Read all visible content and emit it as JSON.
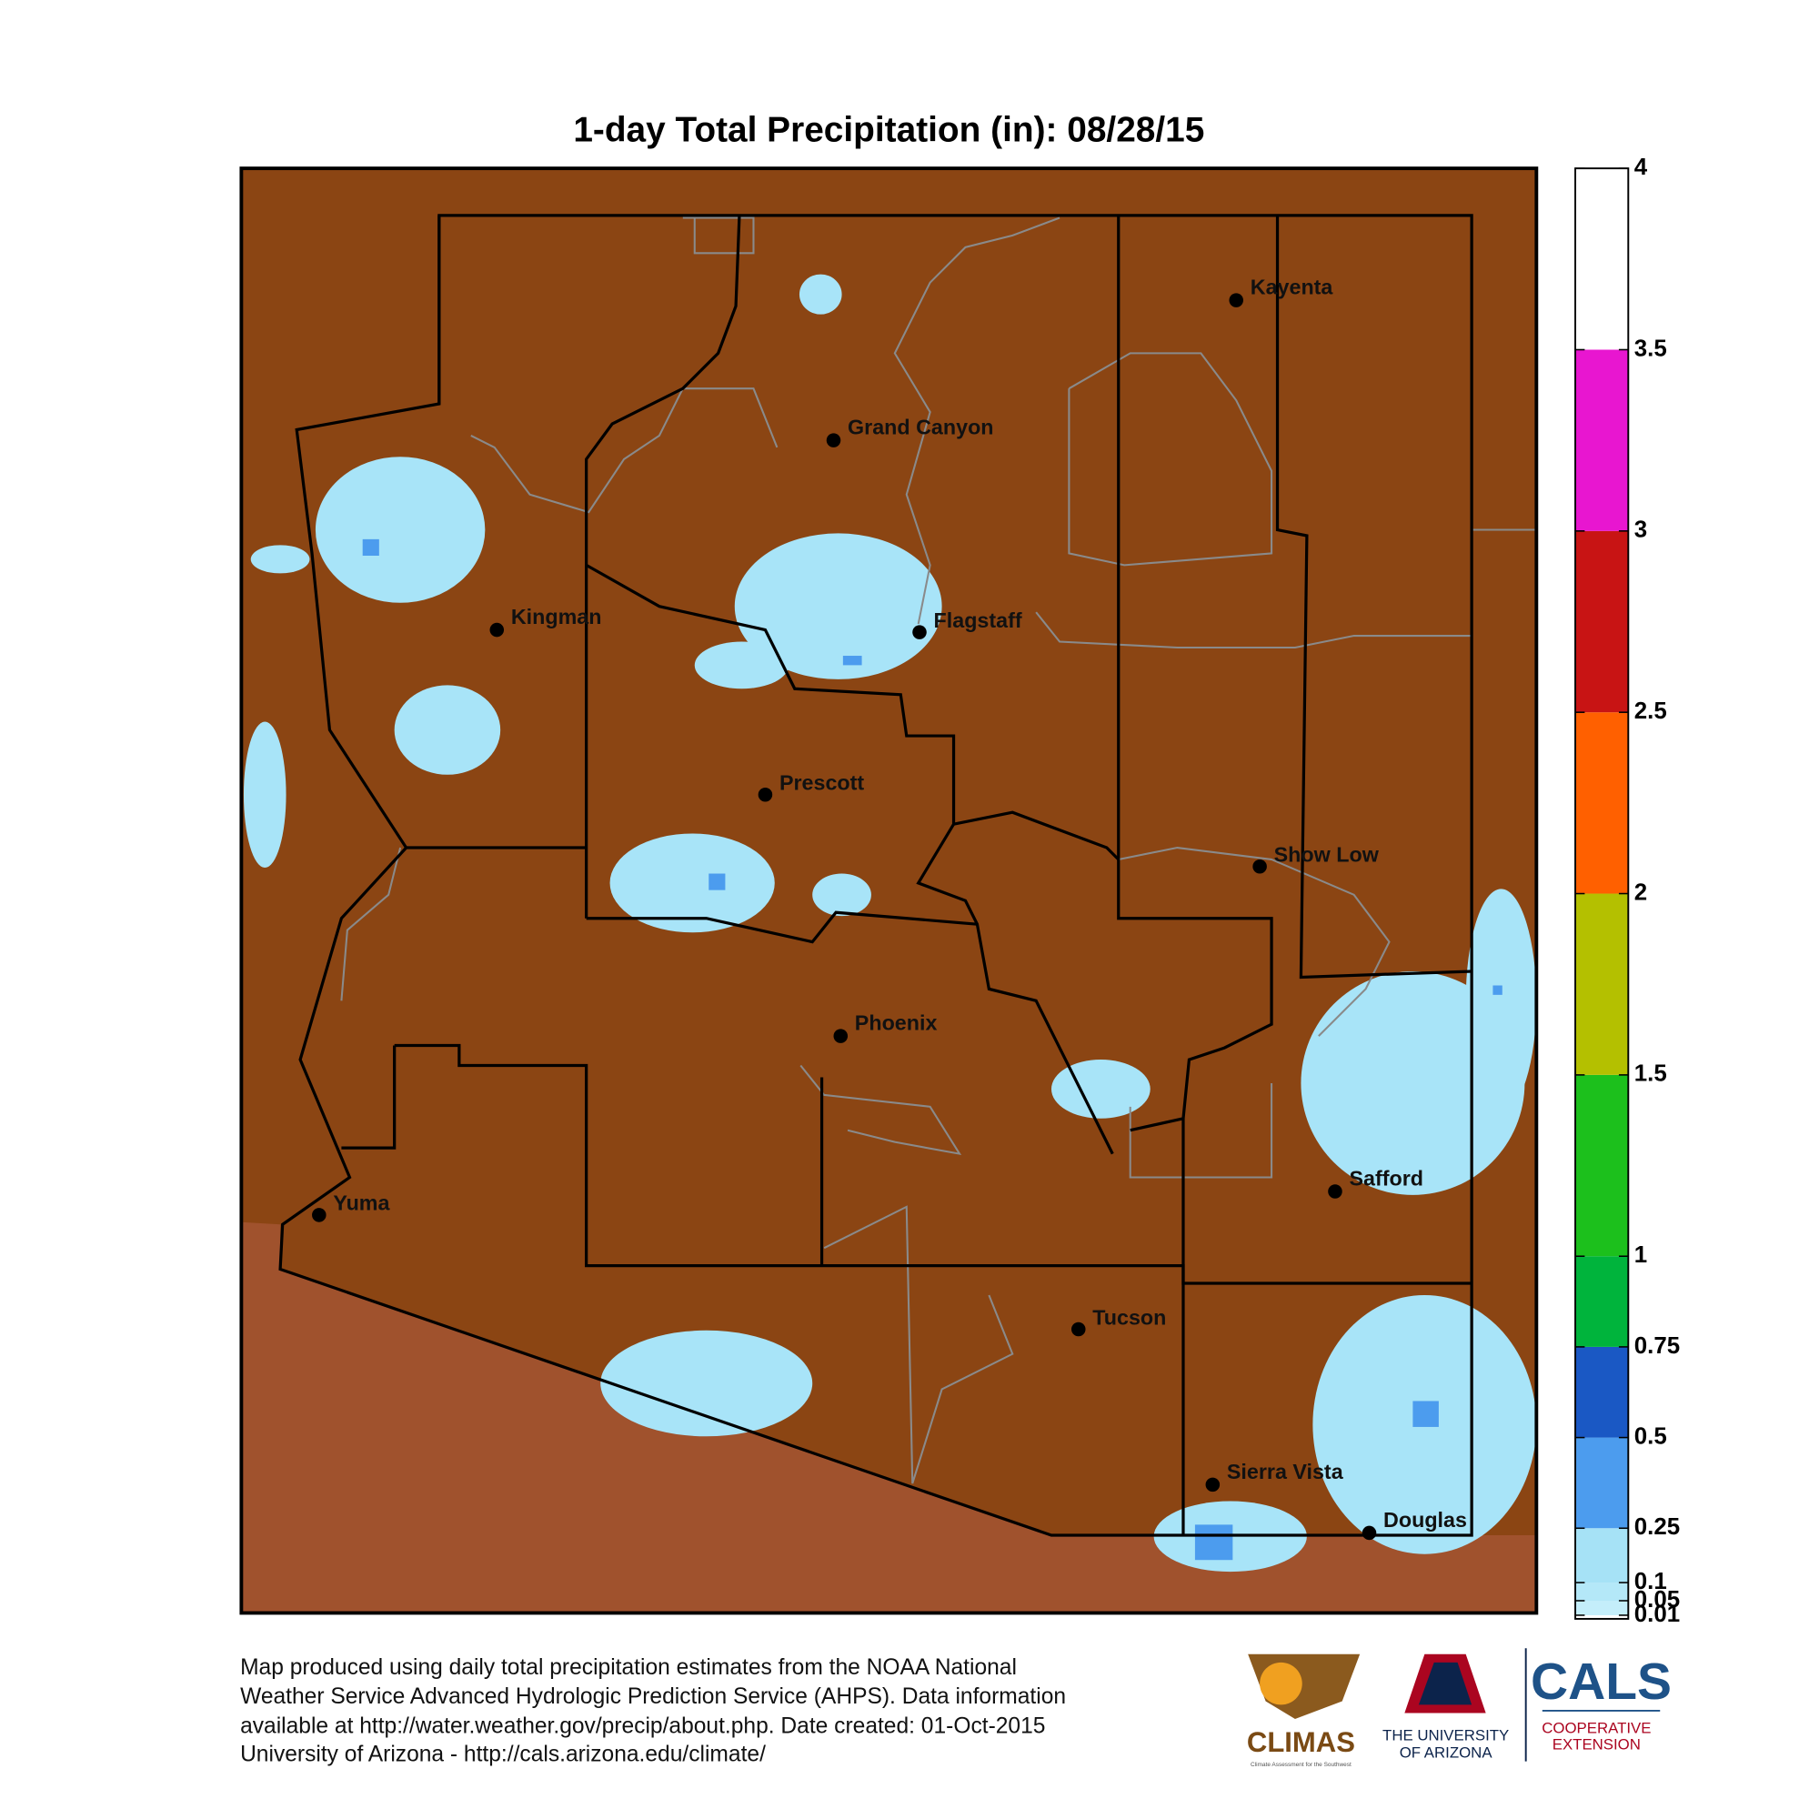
{
  "title": "1-day Total Precipitation (in): 08/28/15",
  "cities": [
    "Kayenta",
    "Grand Canyon",
    "Kingman",
    "Flagstaff",
    "Prescott",
    "Show Low",
    "Phoenix",
    "Safford",
    "Yuma",
    "Tucson",
    "Sierra Vista",
    "Douglas"
  ],
  "colorbar": {
    "lim": [
      0,
      4
    ],
    "ticks": [
      0.01,
      0.05,
      0.1,
      0.25,
      0.5,
      0.75,
      1,
      1.5,
      2,
      2.5,
      3,
      3.5,
      4
    ],
    "colors": [
      "#c4eefa",
      "#b4e8f8",
      "#a6e2f6",
      "#4c9cee",
      "#1a58c4",
      "#00b43c",
      "#1cc01c",
      "#b4c000",
      "#ff6000",
      "#c81414",
      "#e816d0",
      "#ffffff"
    ]
  },
  "footer": {
    "lines": [
      "Map produced using daily total precipitation estimates from the NOAA National",
      "Weather Service Advanced Hydrologic Prediction Service (AHPS). Data information",
      "available at http://water.weather.gov/precip/about.php. Date created: 01-Oct-2015",
      "University of Arizona - http://cals.arizona.edu/climate/"
    ]
  },
  "logos": {
    "climas": "CLIMAS",
    "climas_sub": "Climate Assessment for the Southwest",
    "ua_line1": "THE UNIVERSITY",
    "ua_line2": "OF ARIZONA",
    "cals": "CALS",
    "cals_line1": "COOPERATIVE",
    "cals_line2": "EXTENSION"
  }
}
